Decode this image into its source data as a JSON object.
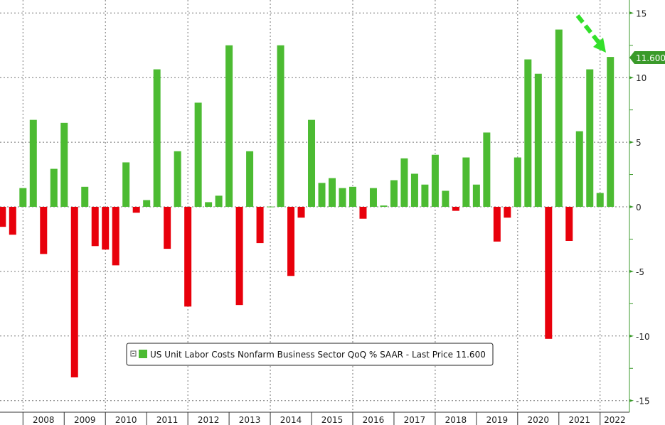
{
  "chart_data": {
    "type": "bar",
    "title": "",
    "xlabel": "",
    "ylabel": "",
    "ylim": [
      -15,
      15
    ],
    "y_ticks": [
      "15",
      "10",
      "5",
      "0",
      "-5",
      "-10",
      "-15"
    ],
    "y_tick_values": [
      15,
      10,
      5,
      0,
      -5,
      -10,
      -15
    ],
    "y_axis_side": "right",
    "grid": true,
    "x_year_labels": [
      "2008",
      "2009",
      "2010",
      "2011",
      "2012",
      "2013",
      "2014",
      "2015",
      "2016",
      "2017",
      "2018",
      "2019",
      "2020",
      "2021",
      "2022"
    ],
    "frequency": "quarterly",
    "series": [
      {
        "name": "US Unit Labor Costs Nonfarm Business Sector QoQ % SAAR",
        "positive_color": "#4cbb32",
        "negative_color": "#e8000b",
        "values": [
          -1.55,
          -2.16,
          1.45,
          6.73,
          -3.65,
          2.94,
          6.5,
          -13.2,
          1.55,
          -3.04,
          -3.31,
          -4.53,
          3.44,
          -0.46,
          0.52,
          10.64,
          -3.25,
          4.3,
          -7.72,
          8.06,
          0.36,
          0.86,
          12.5,
          -7.6,
          4.3,
          -2.81,
          0.02,
          12.5,
          -5.35,
          -0.84,
          6.73,
          1.85,
          2.22,
          1.45,
          1.55,
          -0.92,
          1.45,
          0.1,
          2.06,
          3.75,
          2.56,
          1.72,
          4.03,
          1.24,
          -0.31,
          3.82,
          1.72,
          5.75,
          -2.69,
          -0.84,
          3.82,
          11.41,
          10.3,
          -10.22,
          13.72,
          -2.64,
          5.85,
          10.64,
          1.07,
          11.6
        ]
      }
    ],
    "last_price_label": "11.600",
    "legend": {
      "text": "US Unit Labor Costs Nonfarm Business Sector QoQ % SAAR - Last Price 11.600",
      "placement": "bottom-center"
    },
    "annotation": "green dashed arrow pointing to latest bar"
  }
}
